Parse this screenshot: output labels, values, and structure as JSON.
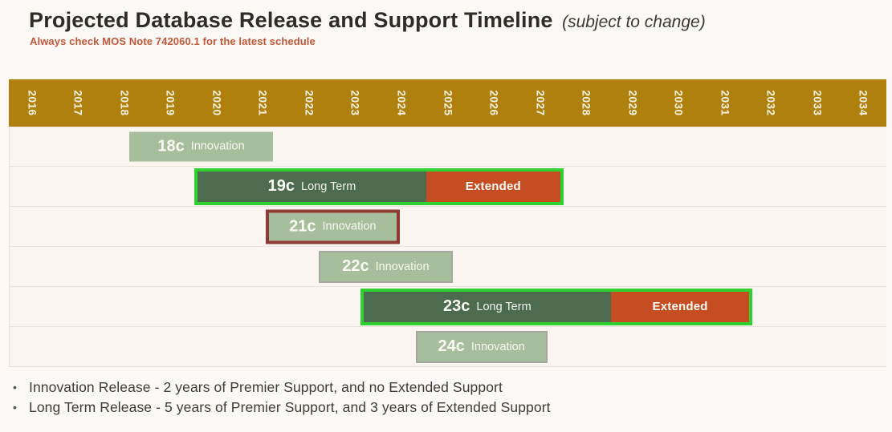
{
  "header": {
    "title": "Projected Database Release and Support Timeline",
    "title_note": "(subject to change)",
    "subtitle": "Always check MOS Note 742060.1 for the latest schedule"
  },
  "colors": {
    "year_bar": "#B0800F",
    "innovation_bar": "#A6BE9B",
    "long_term_bar": "#4D6B4E",
    "extended_bar": "#C64D21",
    "highlight_outline": "#2FD02F",
    "deprecated_outline": "#8F3B33",
    "subtitle_text": "#C2583A"
  },
  "chart_data": {
    "type": "timeline-gantt",
    "title": "Projected Database Release and Support Timeline (subject to change)",
    "x_axis": {
      "unit": "year",
      "start": 2016,
      "end": 2035,
      "tick_labels": [
        "2016",
        "2017",
        "2018",
        "2019",
        "2020",
        "2021",
        "2022",
        "2023",
        "2024",
        "2025",
        "2026",
        "2027",
        "2028",
        "2029",
        "2030",
        "2031",
        "2032",
        "2033",
        "2034"
      ]
    },
    "grid": "horizontal-row-separators",
    "legend_position": "none",
    "segment_labels": {
      "extended": "Extended"
    },
    "rows": [
      {
        "release": "18c",
        "category": "Innovation",
        "premier_start": 2018.6,
        "premier_end": 2021.7,
        "extended_end": null,
        "outline": "none"
      },
      {
        "release": "19c",
        "category": "Long Term",
        "premier_start": 2020.0,
        "premier_end": 2025.05,
        "extended_end": 2028.0,
        "outline": "bright-green"
      },
      {
        "release": "21c",
        "category": "Innovation",
        "premier_start": 2021.55,
        "premier_end": 2024.45,
        "extended_end": null,
        "outline": "dark-red"
      },
      {
        "release": "22c",
        "category": "Innovation",
        "premier_start": 2022.7,
        "premier_end": 2025.6,
        "extended_end": null,
        "outline": "gray"
      },
      {
        "release": "23c",
        "category": "Long Term",
        "premier_start": 2023.6,
        "premier_end": 2029.05,
        "extended_end": 2032.1,
        "outline": "bright-green"
      },
      {
        "release": "24c",
        "category": "Innovation",
        "premier_start": 2024.8,
        "premier_end": 2027.65,
        "extended_end": null,
        "outline": "gray"
      }
    ]
  },
  "legend_notes": {
    "items": [
      "Innovation Release - 2 years of Premier Support, and no Extended Support",
      "Long Term Release - 5 years of Premier Support, and 3 years of Extended Support"
    ]
  }
}
